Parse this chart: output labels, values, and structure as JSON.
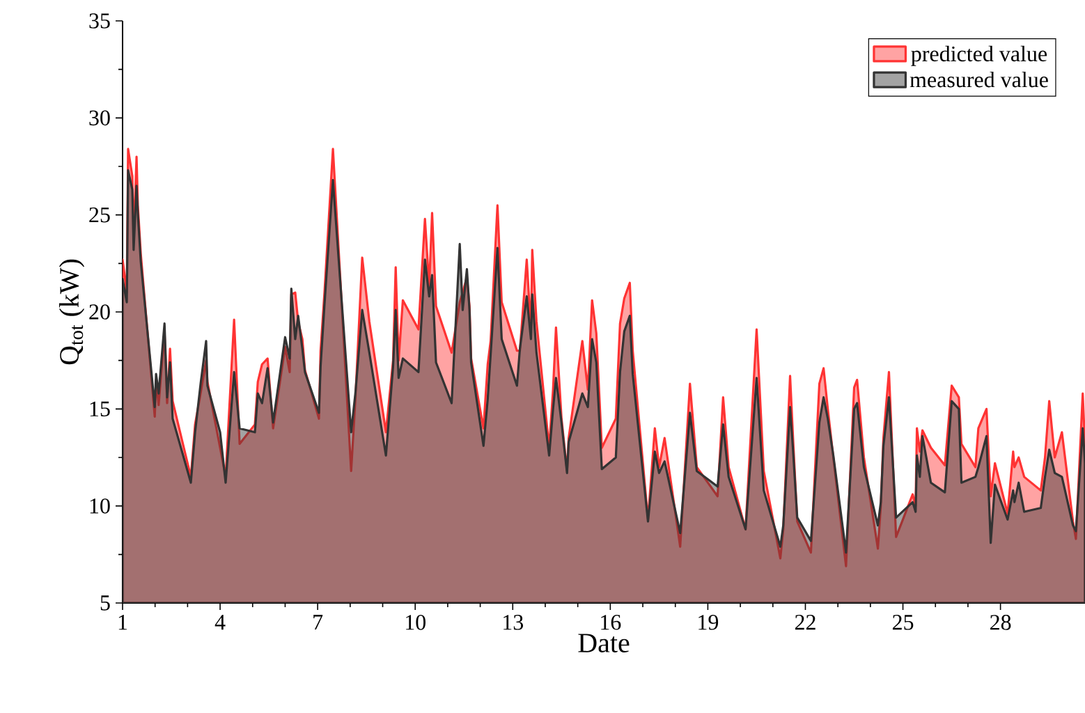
{
  "chart_data": {
    "type": "area",
    "xlabel": "Date",
    "ylabel": "Q$_{tot}$ (kW)",
    "x": [
      1.0,
      1.13,
      1.17,
      1.3,
      1.34,
      1.43,
      1.47,
      1.56,
      1.99,
      2.03,
      2.11,
      2.29,
      2.37,
      2.46,
      2.54,
      3.1,
      3.23,
      3.4,
      3.57,
      3.61,
      4.0,
      4.17,
      4.43,
      4.6,
      5.07,
      5.16,
      5.29,
      5.46,
      5.63,
      6.0,
      6.14,
      6.19,
      6.31,
      6.4,
      6.53,
      6.61,
      7.04,
      7.09,
      7.21,
      7.47,
      8.03,
      8.16,
      8.37,
      8.59,
      9.1,
      9.32,
      9.4,
      9.49,
      9.62,
      10.1,
      10.3,
      10.43,
      10.52,
      10.64,
      11.12,
      11.37,
      11.46,
      11.59,
      11.67,
      11.72,
      12.1,
      12.23,
      12.32,
      12.53,
      12.66,
      13.13,
      13.22,
      13.43,
      13.56,
      13.6,
      13.73,
      14.12,
      14.24,
      14.33,
      14.5,
      14.67,
      14.72,
      15.14,
      15.31,
      15.44,
      15.57,
      15.74,
      16.17,
      16.3,
      16.43,
      16.6,
      16.69,
      17.16,
      17.37,
      17.5,
      17.67,
      18.15,
      18.45,
      18.66,
      19.3,
      19.47,
      19.64,
      20.16,
      20.5,
      20.72,
      21.23,
      21.32,
      21.53,
      21.62,
      21.75,
      22.17,
      22.43,
      22.56,
      22.69,
      22.86,
      23.25,
      23.5,
      23.59,
      23.8,
      24.23,
      24.32,
      24.4,
      24.57,
      24.79,
      25.3,
      25.39,
      25.43,
      25.52,
      25.6,
      25.86,
      26.29,
      26.5,
      26.72,
      26.8,
      27.23,
      27.32,
      27.57,
      27.7,
      27.83,
      28.22,
      28.39,
      28.43,
      28.56,
      28.73,
      29.24,
      29.37,
      29.5,
      29.67,
      29.89,
      30.23,
      30.32,
      30.53,
      30.6
    ],
    "series": [
      {
        "name": "predicted value",
        "color": "#ff3333",
        "values": [
          22.7,
          21.0,
          28.4,
          27.0,
          23.6,
          28.0,
          25.5,
          23.0,
          14.6,
          16.5,
          15.2,
          19.0,
          15.3,
          18.1,
          15.4,
          11.5,
          14.2,
          15.8,
          17.5,
          16.4,
          13.0,
          11.5,
          19.6,
          13.2,
          14.2,
          16.4,
          17.3,
          17.6,
          14.0,
          18.2,
          16.9,
          20.9,
          21.0,
          19.5,
          18.6,
          17.0,
          14.5,
          18.0,
          21.0,
          28.4,
          11.8,
          15.5,
          22.8,
          19.5,
          13.8,
          17.5,
          22.3,
          17.5,
          20.6,
          19.1,
          24.8,
          21.3,
          25.1,
          20.3,
          17.9,
          20.5,
          21.0,
          21.8,
          20.3,
          17.6,
          14.0,
          17.3,
          18.5,
          25.5,
          20.5,
          18.0,
          18.0,
          22.7,
          19.0,
          23.2,
          19.5,
          13.0,
          16.0,
          19.2,
          14.5,
          11.8,
          13.5,
          18.5,
          16.0,
          20.6,
          18.9,
          13.0,
          14.5,
          19.4,
          20.7,
          21.5,
          18.0,
          9.3,
          14.0,
          12.0,
          13.5,
          7.9,
          16.3,
          12.0,
          10.5,
          15.6,
          12.0,
          8.8,
          19.1,
          11.8,
          7.3,
          8.8,
          16.7,
          13.5,
          9.2,
          7.6,
          16.3,
          17.1,
          15.0,
          12.5,
          6.9,
          16.1,
          16.5,
          12.5,
          7.8,
          10.0,
          13.5,
          16.9,
          8.4,
          10.6,
          10.0,
          14.0,
          12.8,
          13.9,
          13.0,
          12.1,
          16.2,
          15.6,
          13.2,
          12.0,
          14.0,
          15.0,
          10.5,
          12.2,
          9.6,
          12.8,
          12.0,
          12.5,
          11.5,
          10.8,
          12.5,
          15.4,
          12.5,
          13.8,
          9.2,
          8.3,
          15.8,
          13.0
        ]
      },
      {
        "name": "measured value",
        "color": "#333333",
        "values": [
          21.7,
          20.5,
          27.3,
          26.3,
          23.2,
          26.5,
          25.1,
          22.6,
          15.1,
          16.8,
          15.8,
          19.4,
          15.6,
          17.4,
          14.5,
          11.2,
          13.8,
          16.3,
          18.5,
          16.2,
          13.8,
          11.2,
          16.9,
          14.0,
          13.8,
          15.8,
          15.3,
          17.1,
          14.3,
          18.7,
          17.6,
          21.2,
          18.6,
          19.8,
          18.1,
          16.9,
          14.8,
          17.2,
          20.4,
          26.8,
          13.8,
          15.8,
          20.1,
          17.9,
          12.6,
          17.2,
          20.1,
          16.6,
          17.6,
          16.9,
          22.7,
          20.8,
          21.9,
          17.4,
          15.3,
          23.5,
          20.1,
          22.2,
          20.1,
          17.4,
          13.1,
          15.5,
          17.8,
          23.3,
          18.6,
          16.2,
          18.1,
          20.8,
          18.6,
          20.9,
          17.9,
          12.6,
          15.0,
          16.6,
          14.3,
          11.7,
          13.3,
          15.8,
          15.1,
          18.6,
          17.4,
          11.9,
          12.5,
          16.9,
          19.0,
          19.8,
          16.8,
          9.2,
          12.8,
          11.7,
          12.3,
          8.6,
          14.8,
          11.8,
          11.0,
          14.2,
          11.5,
          8.8,
          16.6,
          10.8,
          7.9,
          9.0,
          15.1,
          12.9,
          9.4,
          8.2,
          14.3,
          15.6,
          14.5,
          12.6,
          7.6,
          15.0,
          15.3,
          12.0,
          9.0,
          10.2,
          13.1,
          15.6,
          9.4,
          10.2,
          9.7,
          12.6,
          11.5,
          13.6,
          11.2,
          10.7,
          15.4,
          15.0,
          11.2,
          11.5,
          12.0,
          13.6,
          8.1,
          11.1,
          9.3,
          10.8,
          10.2,
          11.2,
          9.7,
          9.9,
          11.5,
          12.9,
          11.7,
          11.5,
          9.0,
          8.7,
          14.0,
          12.2
        ]
      }
    ],
    "xlim": [
      1,
      30.6
    ],
    "xticks": [
      1,
      4,
      7,
      10,
      13,
      16,
      19,
      22,
      25,
      28
    ],
    "ylim": [
      5,
      35
    ],
    "yticks": [
      5,
      10,
      15,
      20,
      25,
      30,
      35
    ],
    "grid": false,
    "legend": "top right"
  }
}
